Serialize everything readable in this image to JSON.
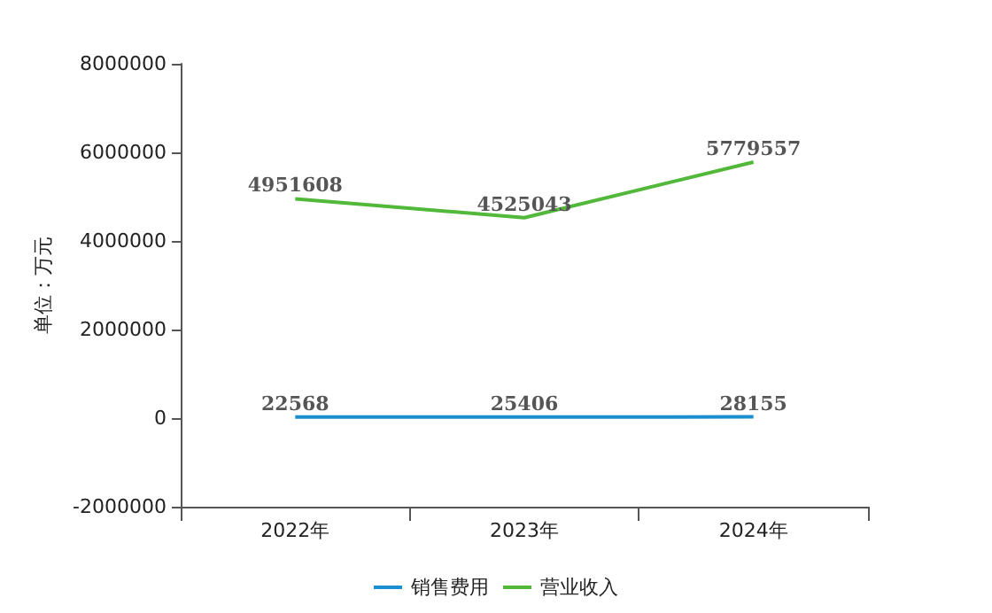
{
  "chart_data": {
    "type": "line",
    "ylabel": "单位：万元",
    "categories": [
      "2022年",
      "2023年",
      "2024年"
    ],
    "series": [
      {
        "name": "销售费用",
        "color": "#1a8fcf",
        "values": [
          22568,
          25406,
          28155
        ]
      },
      {
        "name": "营业收入",
        "color": "#52b83a",
        "values": [
          4951608,
          4525043,
          5779557
        ]
      }
    ],
    "ylim": [
      -2000000,
      8000000
    ],
    "yticks": [
      -2000000,
      0,
      2000000,
      4000000,
      6000000,
      8000000
    ],
    "data_labels": true,
    "grid": false,
    "legend": "bottom",
    "marker": "none",
    "line_style": "solid"
  }
}
